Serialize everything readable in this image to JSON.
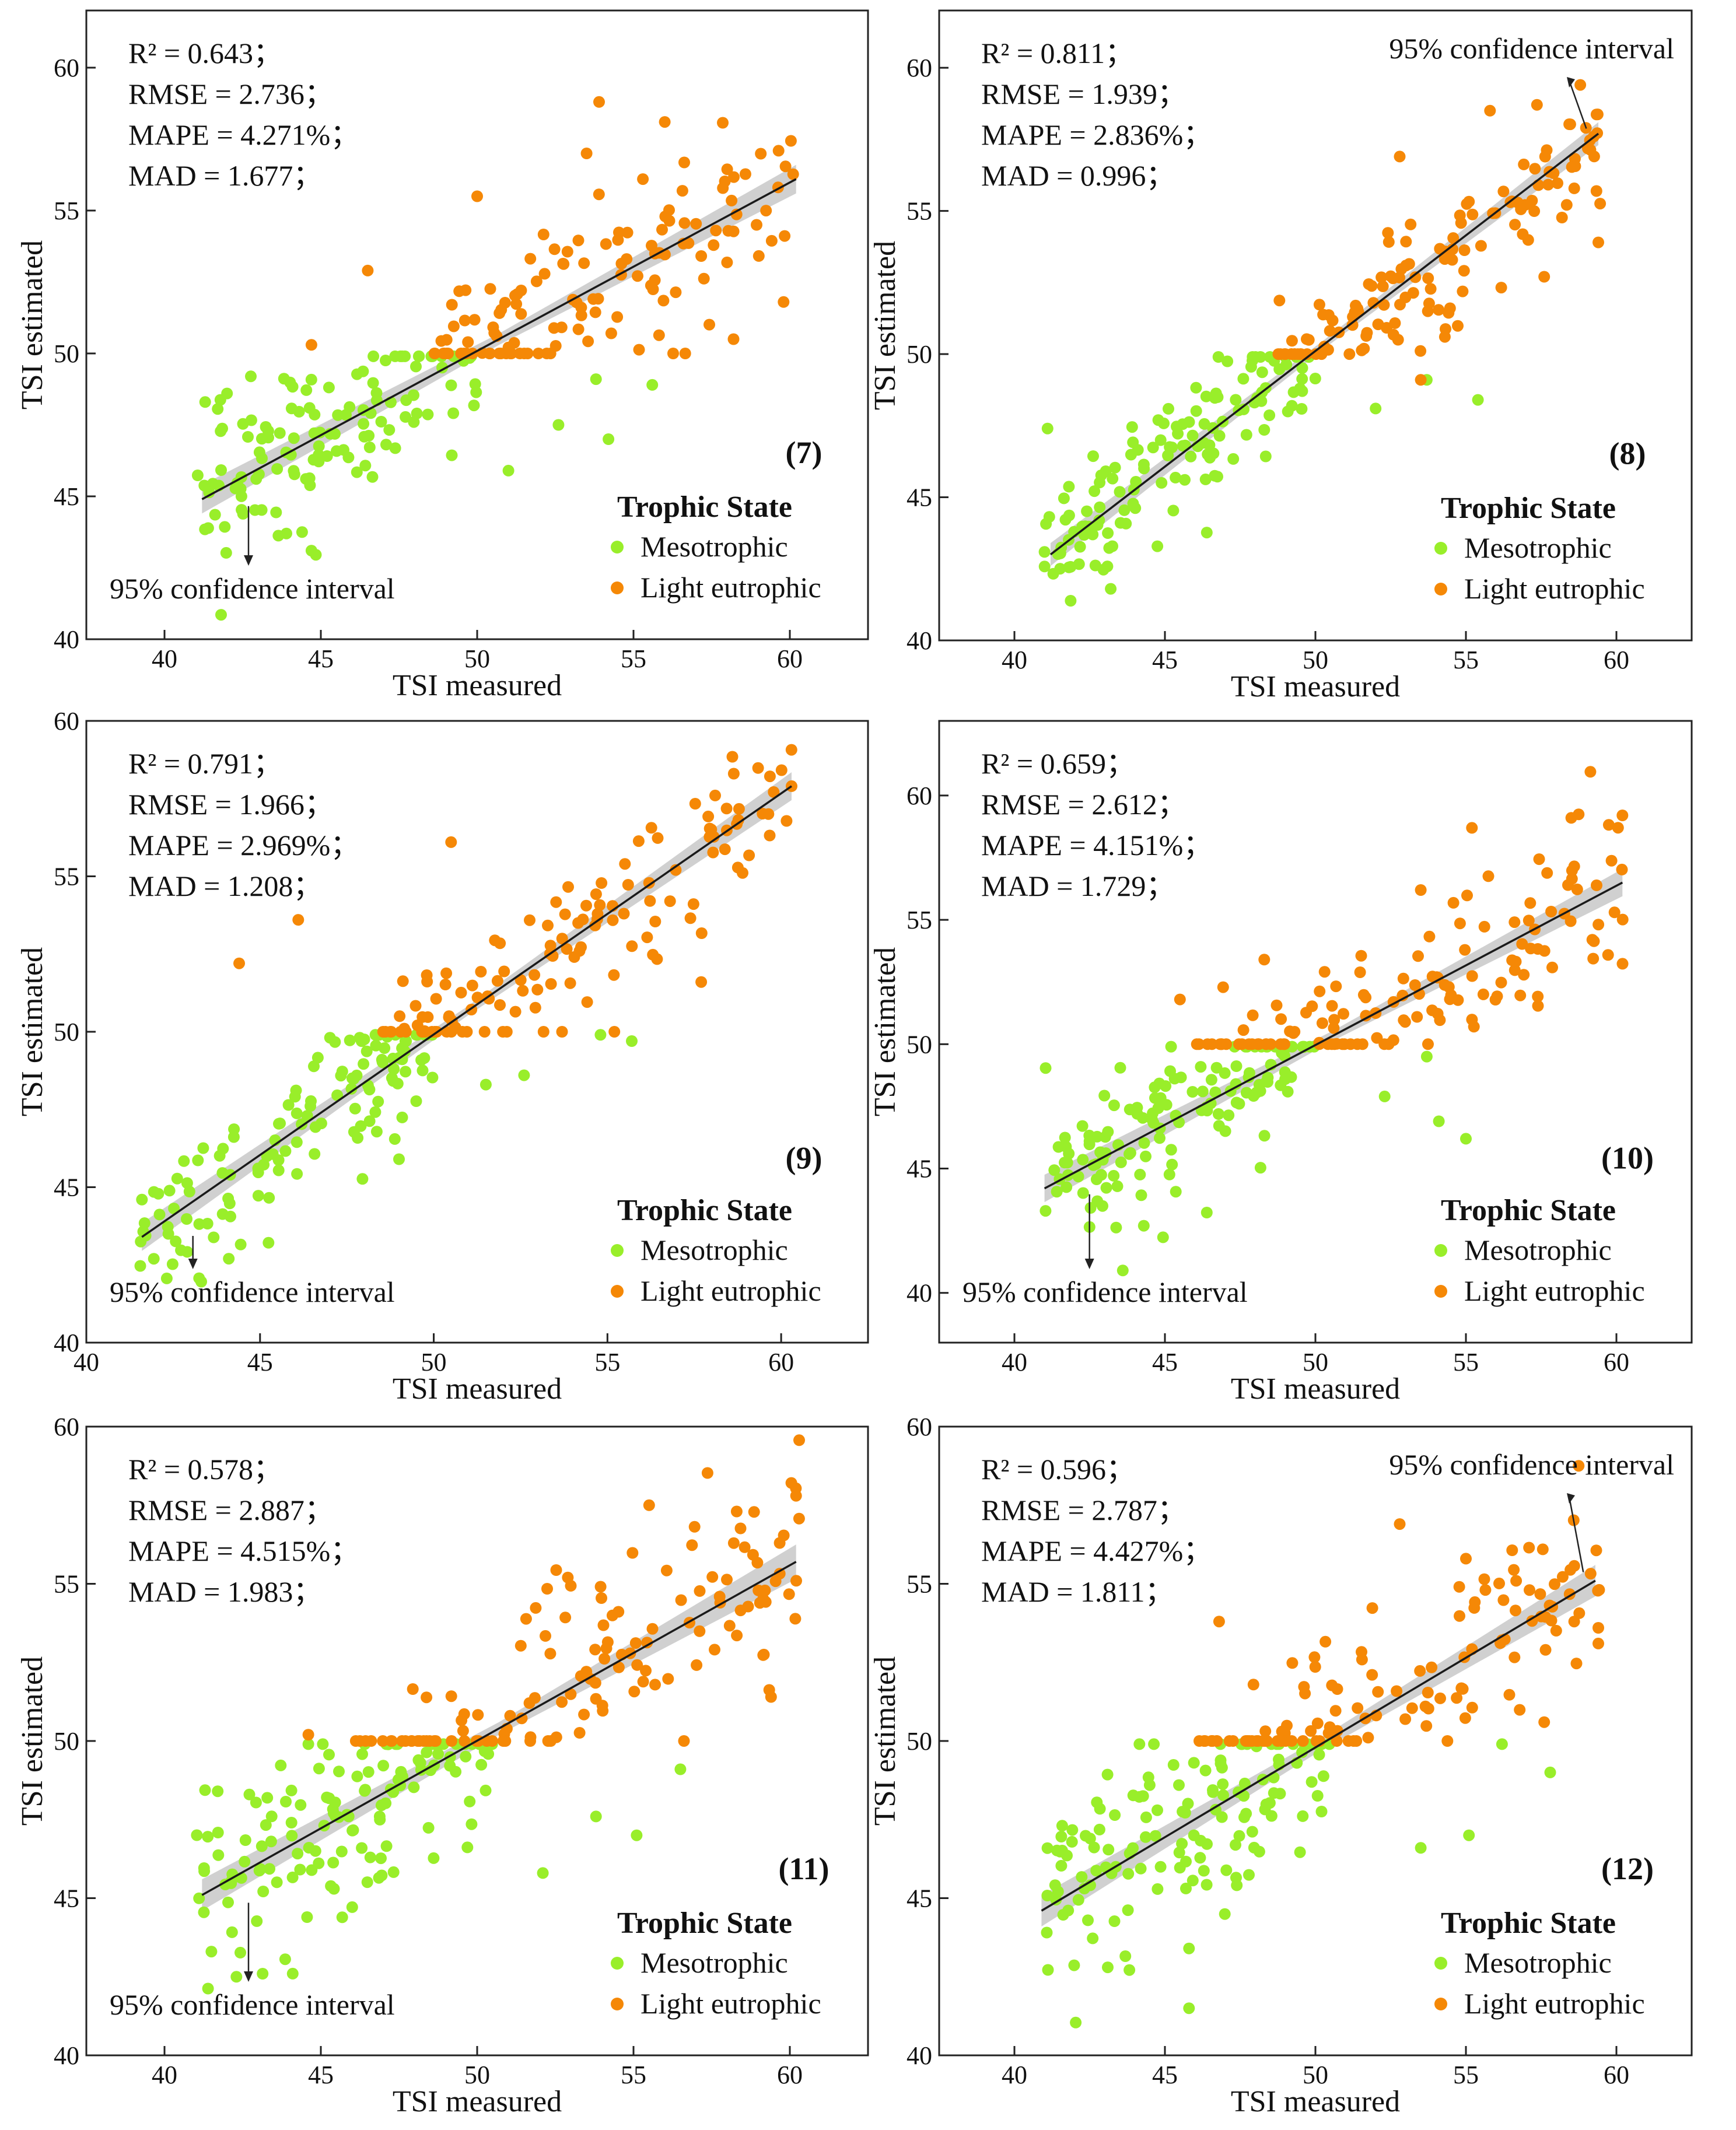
{
  "colors": {
    "meso": "#99ee2a",
    "eutro": "#f58806",
    "fit": "#1a1a1a",
    "ci_band": "#c8c8c8"
  },
  "chart_data": [
    {
      "type": "scatter",
      "panel": "(7)",
      "xlabel": "TSI measured",
      "ylabel": "TSI estimated",
      "xlim": [
        37.5,
        62.5
      ],
      "ylim": [
        40,
        62
      ],
      "xticks": [
        40,
        45,
        50,
        55,
        60
      ],
      "yticks": [
        40,
        45,
        50,
        55,
        60
      ],
      "metrics": [
        "R² = 0.643；",
        "RMSE = 2.736；",
        "MAPE = 4.271%；",
        "MAD = 1.677；"
      ],
      "fit": {
        "x": [
          41.2,
          60.2
        ],
        "y": [
          44.9,
          56.1
        ],
        "ci": [
          0.5,
          0.2,
          0.5
        ]
      },
      "ci_annotation": {
        "text": "95% confidence interval",
        "position": "bottom-left"
      },
      "legend": {
        "title": "Trophic State",
        "items": [
          "Mesotrophic",
          "Light eutrophic"
        ]
      },
      "series": [
        {
          "name": "Mesotrophic",
          "cluster": {
            "x_min": 41,
            "x_max": 50,
            "resid_sd": 1.5,
            "n": 130
          },
          "points": [
            [
              41.3,
              48.3
            ],
            [
              42.0,
              48.6
            ],
            [
              53.8,
              49.1
            ],
            [
              51.0,
              45.9
            ],
            [
              54.2,
              47.0
            ],
            [
              44.7,
              43.1
            ],
            [
              43.9,
              43.7
            ],
            [
              55.6,
              48.9
            ],
            [
              52.6,
              47.5
            ]
          ]
        },
        {
          "name": "Light eutrophic",
          "cluster": {
            "x_min": 48.5,
            "x_max": 60.3,
            "resid_sd": 1.4,
            "n": 130
          },
          "points": [
            [
              53.9,
              58.8
            ],
            [
              56.0,
              58.1
            ],
            [
              46.5,
              52.9
            ],
            [
              44.7,
              50.3
            ],
            [
              50.0,
              55.5
            ],
            [
              59.8,
              51.8
            ],
            [
              58.2,
              50.5
            ],
            [
              53.5,
              57.0
            ],
            [
              55.3,
              56.1
            ]
          ]
        }
      ]
    },
    {
      "type": "scatter",
      "panel": "(8)",
      "xlabel": "TSI measured",
      "ylabel": "TSI estimated",
      "xlim": [
        37.5,
        62.5
      ],
      "ylim": [
        40,
        62
      ],
      "xticks": [
        40,
        45,
        50,
        55,
        60
      ],
      "yticks": [
        40,
        45,
        50,
        55,
        60
      ],
      "metrics": [
        "R² = 0.811；",
        "RMSE = 1.939；",
        "MAPE = 2.836%；",
        "MAD = 0.996；"
      ],
      "fit": {
        "x": [
          41.2,
          59.4
        ],
        "y": [
          43.0,
          57.7
        ],
        "ci": [
          0.4,
          0.15,
          0.4
        ]
      },
      "ci_annotation": {
        "text": "95% confidence interval",
        "position": "top-right"
      },
      "legend": {
        "title": "Trophic State",
        "items": [
          "Mesotrophic",
          "Light eutrophic"
        ]
      },
      "series": [
        {
          "name": "Mesotrophic",
          "cluster": {
            "x_min": 41,
            "x_max": 50,
            "resid_sd": 1.1,
            "n": 135
          },
          "points": [
            [
              41.1,
              47.4
            ],
            [
              43.2,
              41.8
            ],
            [
              53.7,
              49.1
            ],
            [
              55.4,
              48.4
            ],
            [
              52.0,
              48.1
            ],
            [
              42.6,
              43.7
            ]
          ]
        },
        {
          "name": "Light eutrophic",
          "cluster": {
            "x_min": 48.5,
            "x_max": 59.5,
            "resid_sd": 1.1,
            "n": 130
          },
          "points": [
            [
              58.8,
              59.4
            ],
            [
              55.8,
              58.5
            ],
            [
              59.4,
              53.9
            ],
            [
              57.6,
              52.7
            ],
            [
              52.8,
              56.9
            ],
            [
              53.5,
              49.1
            ],
            [
              54.3,
              50.6
            ]
          ]
        }
      ]
    },
    {
      "type": "scatter",
      "panel": "(9)",
      "xlabel": "TSI measured",
      "ylabel": "TSI estimated",
      "xlim": [
        40,
        62.5
      ],
      "ylim": [
        40,
        60
      ],
      "xticks": [
        40,
        45,
        50,
        55,
        60
      ],
      "yticks": [
        40,
        45,
        50,
        55,
        60
      ],
      "metrics": [
        "R² = 0.791；",
        "RMSE = 1.966；",
        "MAPE = 2.969%；",
        "MAD = 1.208；"
      ],
      "fit": {
        "x": [
          41.6,
          60.3
        ],
        "y": [
          43.4,
          57.9
        ],
        "ci": [
          0.45,
          0.15,
          0.45
        ]
      },
      "ci_annotation": {
        "text": "95% confidence interval",
        "position": "bottom-left"
      },
      "legend": {
        "title": "Trophic State",
        "items": [
          "Mesotrophic",
          "Light eutrophic"
        ]
      },
      "series": [
        {
          "name": "Mesotrophic",
          "cluster": {
            "x_min": 41.5,
            "x_max": 50,
            "resid_sd": 1.2,
            "n": 130
          },
          "points": [
            [
              41.6,
              44.6
            ],
            [
              44.1,
              42.7
            ],
            [
              54.8,
              49.9
            ],
            [
              55.7,
              49.7
            ],
            [
              51.5,
              48.3
            ],
            [
              52.6,
              48.6
            ],
            [
              49.0,
              45.9
            ]
          ]
        },
        {
          "name": "Light eutrophic",
          "cluster": {
            "x_min": 48.5,
            "x_max": 60.3,
            "resid_sd": 1.3,
            "n": 130
          },
          "points": [
            [
              44.4,
              52.2
            ],
            [
              46.1,
              53.6
            ],
            [
              50.5,
              56.1
            ],
            [
              57.7,
              51.6
            ],
            [
              55.2,
              50.0
            ],
            [
              60.3,
              57.9
            ],
            [
              58.1,
              57.6
            ]
          ]
        }
      ]
    },
    {
      "type": "scatter",
      "panel": "(10)",
      "xlabel": "TSI measured",
      "ylabel": "TSI estimated",
      "xlim": [
        37.5,
        62.5
      ],
      "ylim": [
        38,
        63
      ],
      "xticks": [
        40,
        45,
        50,
        55,
        60
      ],
      "yticks": [
        40,
        45,
        50,
        55,
        60
      ],
      "metrics": [
        "R² = 0.659；",
        "RMSE = 2.612；",
        "MAPE = 4.151%；",
        "MAD = 1.729；"
      ],
      "fit": {
        "x": [
          41.0,
          60.2
        ],
        "y": [
          44.2,
          56.5
        ],
        "ci": [
          0.55,
          0.2,
          0.55
        ]
      },
      "ci_annotation": {
        "text": "95% confidence interval",
        "position": "bottom-left"
      },
      "legend": {
        "title": "Trophic State",
        "items": [
          "Mesotrophic",
          "Light eutrophic"
        ]
      },
      "series": [
        {
          "name": "Mesotrophic",
          "cluster": {
            "x_min": 41,
            "x_max": 50,
            "resid_sd": 1.6,
            "n": 135
          },
          "points": [
            [
              43.6,
              40.9
            ],
            [
              55.0,
              46.2
            ],
            [
              54.1,
              46.9
            ],
            [
              52.3,
              47.9
            ],
            [
              53.7,
              49.5
            ]
          ]
        },
        {
          "name": "Light eutrophic",
          "cluster": {
            "x_min": 46,
            "x_max": 60.3,
            "resid_sd": 1.6,
            "n": 135
          },
          "points": [
            [
              55.2,
              58.7
            ],
            [
              58.5,
              59.1
            ],
            [
              60.2,
              59.2
            ],
            [
              59.2,
              54.2
            ],
            [
              48.3,
              53.4
            ],
            [
              45.5,
              51.8
            ],
            [
              53.5,
              56.2
            ]
          ]
        }
      ]
    },
    {
      "type": "scatter",
      "panel": "(11)",
      "xlabel": "TSI measured",
      "ylabel": "TSI estimated",
      "xlim": [
        37.5,
        62.5
      ],
      "ylim": [
        40,
        60
      ],
      "xticks": [
        40,
        45,
        50,
        55,
        60
      ],
      "yticks": [
        40,
        45,
        50,
        55,
        60
      ],
      "metrics": [
        "R² = 0.578；",
        "RMSE = 2.887；",
        "MAPE = 4.515%；",
        "MAD = 1.983；"
      ],
      "fit": {
        "x": [
          41.2,
          60.2
        ],
        "y": [
          45.1,
          55.7
        ],
        "ci": [
          0.5,
          0.2,
          0.55
        ]
      },
      "ci_annotation": {
        "text": "95% confidence interval",
        "position": "bottom-left"
      },
      "legend": {
        "title": "Trophic State",
        "items": [
          "Mesotrophic",
          "Light eutrophic"
        ]
      },
      "series": [
        {
          "name": "Mesotrophic",
          "cluster": {
            "x_min": 41,
            "x_max": 50.5,
            "resid_sd": 1.6,
            "n": 140
          },
          "points": [
            [
              41.5,
              43.3
            ],
            [
              42.3,
              42.5
            ],
            [
              44.1,
              42.6
            ],
            [
              55.1,
              47.0
            ],
            [
              52.1,
              45.8
            ],
            [
              56.5,
              49.1
            ],
            [
              53.8,
              47.6
            ]
          ]
        },
        {
          "name": "Light eutrophic",
          "cluster": {
            "x_min": 46,
            "x_max": 60.3,
            "resid_sd": 1.6,
            "n": 130
          },
          "points": [
            [
              60.2,
              57.8
            ],
            [
              55.5,
              57.5
            ],
            [
              58.3,
              57.3
            ],
            [
              59.4,
              51.4
            ],
            [
              44.6,
              50.2
            ],
            [
              52.9,
              55.2
            ]
          ]
        }
      ]
    },
    {
      "type": "scatter",
      "panel": "(12)",
      "xlabel": "TSI measured",
      "ylabel": "TSI estimated",
      "xlim": [
        37.5,
        62.5
      ],
      "ylim": [
        40,
        60
      ],
      "xticks": [
        40,
        45,
        50,
        55,
        60
      ],
      "yticks": [
        40,
        45,
        50,
        55,
        60
      ],
      "metrics": [
        "R² = 0.596；",
        "RMSE = 2.787；",
        "MAPE = 4.427%；",
        "MAD = 1.811；"
      ],
      "fit": {
        "x": [
          40.9,
          59.3
        ],
        "y": [
          44.6,
          55.1
        ],
        "ci": [
          0.5,
          0.2,
          0.5
        ]
      },
      "ci_annotation": {
        "text": "95% confidence interval",
        "position": "top-right"
      },
      "legend": {
        "title": "Trophic State",
        "items": [
          "Mesotrophic",
          "Light eutrophic"
        ]
      },
      "series": [
        {
          "name": "Mesotrophic",
          "cluster": {
            "x_min": 41,
            "x_max": 50.5,
            "resid_sd": 1.6,
            "n": 140
          },
          "points": [
            [
              45.8,
              41.5
            ],
            [
              43.1,
              42.8
            ],
            [
              45.8,
              43.4
            ],
            [
              57.8,
              49.0
            ],
            [
              55.1,
              47.0
            ],
            [
              53.5,
              46.6
            ],
            [
              56.2,
              49.9
            ]
          ]
        },
        {
          "name": "Light eutrophic",
          "cluster": {
            "x_min": 46,
            "x_max": 59.5,
            "resid_sd": 1.5,
            "n": 125
          },
          "points": [
            [
              52.8,
              56.9
            ],
            [
              46.8,
              53.8
            ],
            [
              59.4,
              53.6
            ],
            [
              59.4,
              53.1
            ],
            [
              57.6,
              50.6
            ],
            [
              55.0,
              55.8
            ]
          ]
        }
      ]
    }
  ]
}
